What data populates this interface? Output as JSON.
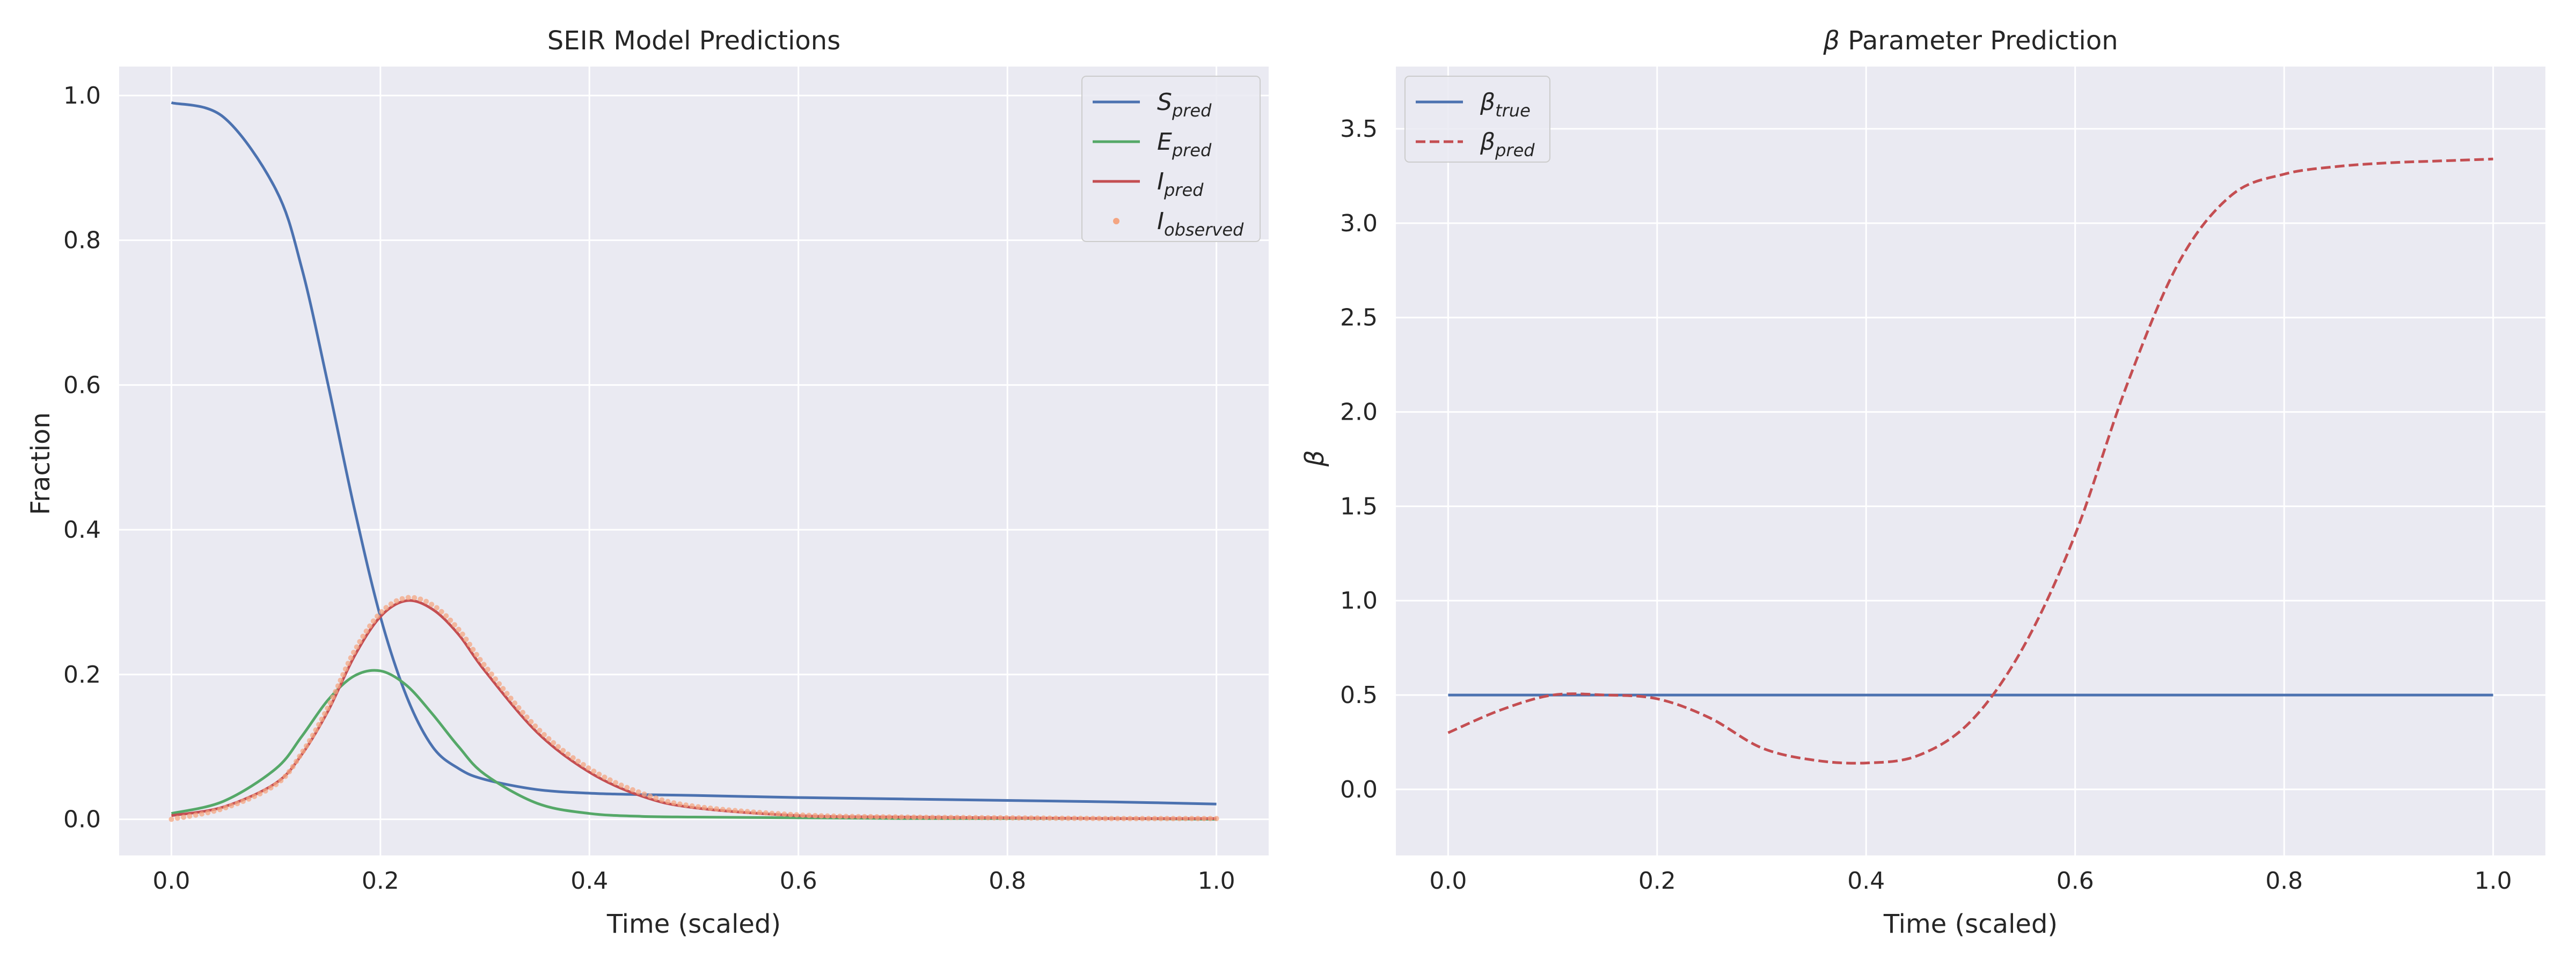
{
  "chart_data": [
    {
      "type": "line",
      "title": "SEIR Model Predictions",
      "xlabel": "Time (scaled)",
      "ylabel": "Fraction",
      "xlim": [
        -0.05,
        1.05
      ],
      "ylim": [
        -0.05,
        1.04
      ],
      "xticks": [
        0.0,
        0.2,
        0.4,
        0.6,
        0.8,
        1.0
      ],
      "xtick_labels": [
        "0.0",
        "0.2",
        "0.4",
        "0.6",
        "0.8",
        "1.0"
      ],
      "yticks": [
        0.0,
        0.2,
        0.4,
        0.6,
        0.8,
        1.0
      ],
      "ytick_labels": [
        "0.0",
        "0.2",
        "0.4",
        "0.6",
        "0.8",
        "1.0"
      ],
      "grid": true,
      "legend_position": "top-right",
      "x": [
        0.0,
        0.05,
        0.1,
        0.125,
        0.15,
        0.175,
        0.2,
        0.225,
        0.25,
        0.275,
        0.3,
        0.35,
        0.4,
        0.45,
        0.5,
        0.6,
        0.7,
        0.8,
        0.9,
        1.0
      ],
      "series": [
        {
          "name": "S",
          "subscript": "pred",
          "style": "line",
          "color": "#4c72b0",
          "values": [
            0.99,
            0.97,
            0.87,
            0.76,
            0.6,
            0.43,
            0.28,
            0.17,
            0.1,
            0.07,
            0.055,
            0.041,
            0.036,
            0.034,
            0.033,
            0.03,
            0.028,
            0.026,
            0.024,
            0.021
          ]
        },
        {
          "name": "E",
          "subscript": "pred",
          "style": "line",
          "color": "#55a868",
          "values": [
            0.008,
            0.025,
            0.07,
            0.115,
            0.165,
            0.198,
            0.205,
            0.185,
            0.145,
            0.1,
            0.062,
            0.022,
            0.008,
            0.004,
            0.003,
            0.002,
            0.001,
            0.001,
            0.001,
            0.0
          ]
        },
        {
          "name": "I",
          "subscript": "pred",
          "style": "line",
          "color": "#c44e52",
          "values": [
            0.005,
            0.017,
            0.05,
            0.09,
            0.15,
            0.225,
            0.28,
            0.302,
            0.29,
            0.255,
            0.205,
            0.12,
            0.065,
            0.032,
            0.016,
            0.005,
            0.003,
            0.002,
            0.001,
            0.001
          ]
        },
        {
          "name": "I",
          "subscript": "observed",
          "style": "points",
          "color": "#f4a582",
          "values": [
            0.0,
            0.015,
            0.048,
            0.092,
            0.155,
            0.232,
            0.285,
            0.306,
            0.296,
            0.262,
            0.212,
            0.126,
            0.07,
            0.036,
            0.018,
            0.006,
            0.003,
            0.002,
            0.001,
            0.001
          ]
        }
      ]
    },
    {
      "type": "line",
      "title": "β Parameter Prediction",
      "title_symbol": "β",
      "title_rest": " Parameter Prediction",
      "xlabel": "Time (scaled)",
      "ylabel": "β",
      "xlim": [
        -0.05,
        1.05
      ],
      "ylim": [
        -0.35,
        3.83
      ],
      "xticks": [
        0.0,
        0.2,
        0.4,
        0.6,
        0.8,
        1.0
      ],
      "xtick_labels": [
        "0.0",
        "0.2",
        "0.4",
        "0.6",
        "0.8",
        "1.0"
      ],
      "yticks": [
        0.0,
        0.5,
        1.0,
        1.5,
        2.0,
        2.5,
        3.0,
        3.5
      ],
      "ytick_labels": [
        "0.0",
        "0.5",
        "1.0",
        "1.5",
        "2.0",
        "2.5",
        "3.0",
        "3.5"
      ],
      "grid": true,
      "legend_position": "top-left",
      "x": [
        0.0,
        0.05,
        0.1,
        0.15,
        0.2,
        0.25,
        0.3,
        0.35,
        0.4,
        0.45,
        0.5,
        0.55,
        0.6,
        0.65,
        0.7,
        0.75,
        0.8,
        0.85,
        0.9,
        0.95,
        1.0
      ],
      "series": [
        {
          "name": "β",
          "subscript": "true",
          "style": "line",
          "color": "#4c72b0",
          "values": [
            0.5,
            0.5,
            0.5,
            0.5,
            0.5,
            0.5,
            0.5,
            0.5,
            0.5,
            0.5,
            0.5,
            0.5,
            0.5,
            0.5,
            0.5,
            0.5,
            0.5,
            0.5,
            0.5,
            0.5,
            0.5
          ]
        },
        {
          "name": "β",
          "subscript": "pred",
          "style": "dashed",
          "color": "#c44e52",
          "values": [
            0.3,
            0.42,
            0.5,
            0.5,
            0.48,
            0.38,
            0.22,
            0.155,
            0.14,
            0.18,
            0.36,
            0.75,
            1.35,
            2.15,
            2.8,
            3.15,
            3.26,
            3.3,
            3.32,
            3.33,
            3.34
          ]
        }
      ]
    }
  ]
}
